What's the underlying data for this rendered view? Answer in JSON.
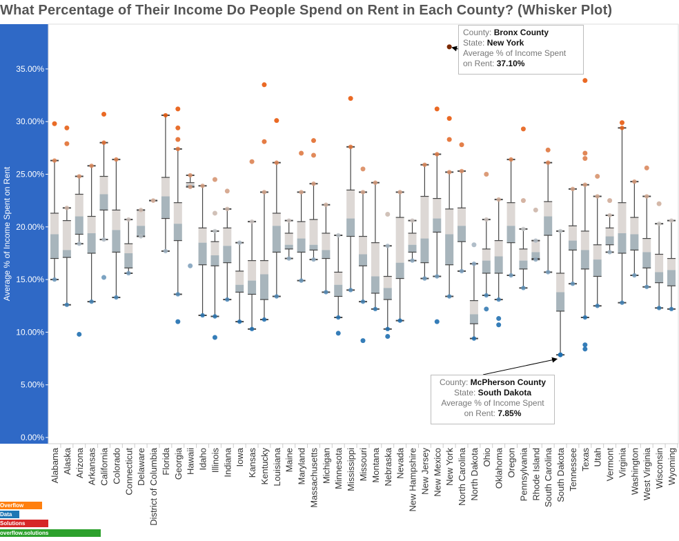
{
  "title": "What Percentage of Their Income Do People Spend on Rent in Each County? (Whisker Plot)",
  "chart_data": {
    "type": "box",
    "title": "What Percentage of Their Income Do People Spend on Rent in Each County? (Whisker Plot)",
    "ylabel": "Average % of Income Spent on Rent",
    "xlabel": "",
    "ylim": [
      0,
      37.5
    ],
    "yticks": [
      "0.00%",
      "5.00%",
      "10.00%",
      "15.00%",
      "20.00%",
      "25.00%",
      "30.00%",
      "35.00%"
    ],
    "grid": false,
    "color_scale": {
      "high": "#e8590c",
      "mid": "#c8c8c8",
      "low": "#1f6fb0",
      "midpoint": 20
    },
    "fields": [
      "whisker_low",
      "q1",
      "median",
      "q3",
      "whisker_high"
    ],
    "states": [
      {
        "name": "Alabama",
        "stats": [
          15.0,
          17.0,
          19.3,
          21.3,
          26.3
        ],
        "outliers": [
          29.8
        ]
      },
      {
        "name": "Alaska",
        "stats": [
          12.6,
          17.1,
          17.8,
          20.6,
          21.8
        ],
        "outliers": [
          29.4,
          27.9
        ]
      },
      {
        "name": "Arizona",
        "stats": [
          18.4,
          19.3,
          21.0,
          23.1,
          24.8
        ],
        "outliers": [
          9.8
        ]
      },
      {
        "name": "Arkansas",
        "stats": [
          12.9,
          17.5,
          19.4,
          21.0,
          25.8
        ],
        "outliers": []
      },
      {
        "name": "California",
        "stats": [
          18.8,
          21.6,
          23.1,
          24.8,
          28.0
        ],
        "outliers": [
          30.7,
          15.2
        ]
      },
      {
        "name": "Colorado",
        "stats": [
          13.3,
          17.6,
          19.7,
          21.6,
          26.4
        ],
        "outliers": []
      },
      {
        "name": "Connecticut",
        "stats": [
          15.6,
          16.1,
          17.5,
          18.4,
          20.7
        ],
        "outliers": []
      },
      {
        "name": "Delaware",
        "stats": [
          19.1,
          19.1,
          20.1,
          21.6,
          21.6
        ],
        "outliers": []
      },
      {
        "name": "District of Columbia",
        "stats": [
          22.5,
          22.5,
          22.5,
          22.5,
          22.5
        ],
        "outliers": []
      },
      {
        "name": "Florida",
        "stats": [
          17.7,
          20.8,
          22.9,
          24.7,
          30.6
        ],
        "outliers": []
      },
      {
        "name": "Georgia",
        "stats": [
          13.6,
          18.7,
          20.3,
          22.3,
          27.4
        ],
        "outliers": [
          31.2,
          29.4,
          28.3,
          11.0
        ]
      },
      {
        "name": "Hawaii",
        "stats": [
          23.8,
          23.8,
          24.0,
          24.2,
          24.9
        ],
        "outliers": [
          16.3
        ]
      },
      {
        "name": "Idaho",
        "stats": [
          11.6,
          16.4,
          18.5,
          19.9,
          23.9
        ],
        "outliers": []
      },
      {
        "name": "Illinois",
        "stats": [
          11.5,
          16.3,
          17.3,
          18.6,
          19.6
        ],
        "outliers": [
          24.5,
          21.3,
          9.5
        ]
      },
      {
        "name": "Indiana",
        "stats": [
          13.1,
          16.6,
          18.2,
          19.9,
          21.7
        ],
        "outliers": [
          23.4
        ]
      },
      {
        "name": "Iowa",
        "stats": [
          11.0,
          13.8,
          14.5,
          15.8,
          18.5
        ],
        "outliers": []
      },
      {
        "name": "Kansas",
        "stats": [
          10.3,
          13.6,
          14.9,
          16.8,
          20.5
        ],
        "outliers": [
          26.2
        ]
      },
      {
        "name": "Kentucky",
        "stats": [
          11.2,
          13.1,
          15.5,
          16.8,
          23.3
        ],
        "outliers": [
          33.5,
          28.1
        ]
      },
      {
        "name": "Louisiana",
        "stats": [
          13.4,
          17.6,
          20.1,
          21.3,
          26.1
        ],
        "outliers": [
          30.1
        ]
      },
      {
        "name": "Maine",
        "stats": [
          17.0,
          17.9,
          18.3,
          19.4,
          20.6
        ],
        "outliers": []
      },
      {
        "name": "Maryland",
        "stats": [
          14.9,
          17.6,
          18.9,
          20.5,
          23.3
        ],
        "outliers": [
          27.0
        ]
      },
      {
        "name": "Massachusetts",
        "stats": [
          16.9,
          17.8,
          18.3,
          20.7,
          24.1
        ],
        "outliers": [
          26.8,
          28.2
        ]
      },
      {
        "name": "Michigan",
        "stats": [
          13.8,
          17.0,
          17.8,
          19.4,
          22.1
        ],
        "outliers": []
      },
      {
        "name": "Minnesota",
        "stats": [
          11.4,
          13.4,
          14.5,
          15.7,
          19.2
        ],
        "outliers": [
          9.9
        ]
      },
      {
        "name": "Mississippi",
        "stats": [
          14.0,
          19.1,
          20.8,
          23.5,
          27.6
        ],
        "outliers": [
          32.2
        ]
      },
      {
        "name": "Missouri",
        "stats": [
          12.9,
          16.3,
          17.4,
          19.1,
          23.3
        ],
        "outliers": [
          25.5,
          9.2
        ]
      },
      {
        "name": "Montana",
        "stats": [
          12.2,
          13.7,
          15.3,
          18.5,
          24.2
        ],
        "outliers": []
      },
      {
        "name": "Nebraska",
        "stats": [
          10.3,
          13.1,
          14.2,
          15.3,
          18.2
        ],
        "outliers": [
          21.2,
          9.6
        ]
      },
      {
        "name": "Nevada",
        "stats": [
          11.1,
          15.1,
          16.6,
          20.9,
          23.3
        ],
        "outliers": []
      },
      {
        "name": "New Hampshire",
        "stats": [
          16.8,
          17.6,
          18.3,
          19.4,
          20.6
        ],
        "outliers": []
      },
      {
        "name": "New Jersey",
        "stats": [
          15.1,
          16.6,
          18.9,
          22.9,
          25.9
        ],
        "outliers": []
      },
      {
        "name": "New Mexico",
        "stats": [
          15.3,
          19.5,
          20.8,
          22.7,
          26.9
        ],
        "outliers": [
          31.2,
          11.0
        ]
      },
      {
        "name": "New York",
        "stats": [
          13.4,
          16.4,
          19.3,
          21.7,
          25.2
        ],
        "outliers": [
          37.1,
          30.3,
          28.3
        ]
      },
      {
        "name": "North Carolina",
        "stats": [
          15.8,
          18.6,
          20.1,
          21.8,
          25.3
        ],
        "outliers": [
          27.8
        ]
      },
      {
        "name": "North Dakota",
        "stats": [
          9.4,
          10.8,
          11.7,
          13.0,
          16.5
        ],
        "outliers": [
          18.3
        ]
      },
      {
        "name": "Ohio",
        "stats": [
          13.5,
          15.6,
          16.8,
          17.9,
          20.7
        ],
        "outliers": [
          25.0,
          12.2
        ]
      },
      {
        "name": "Oklahoma",
        "stats": [
          13.1,
          15.6,
          17.2,
          18.7,
          22.6
        ],
        "outliers": [
          11.3,
          10.7
        ]
      },
      {
        "name": "Oregon",
        "stats": [
          15.4,
          18.5,
          20.1,
          22.3,
          26.4
        ],
        "outliers": []
      },
      {
        "name": "Pennsylvania",
        "stats": [
          14.2,
          16.0,
          16.8,
          17.9,
          19.8
        ],
        "outliers": [
          29.3,
          22.5
        ]
      },
      {
        "name": "Rhode Island",
        "stats": [
          16.9,
          17.0,
          17.6,
          18.7,
          18.7
        ],
        "outliers": [
          21.6
        ]
      },
      {
        "name": "South Carolina",
        "stats": [
          15.7,
          19.2,
          21.0,
          22.4,
          26.1
        ],
        "outliers": [
          27.3
        ]
      },
      {
        "name": "South Dakota",
        "stats": [
          7.85,
          12.0,
          13.8,
          15.6,
          19.6
        ],
        "outliers": []
      },
      {
        "name": "Tennessee",
        "stats": [
          14.6,
          17.8,
          18.7,
          20.1,
          23.6
        ],
        "outliers": []
      },
      {
        "name": "Texas",
        "stats": [
          11.4,
          16.0,
          17.8,
          19.6,
          24.0
        ],
        "outliers": [
          33.9,
          27.0,
          26.5,
          8.8,
          8.4
        ]
      },
      {
        "name": "Utah",
        "stats": [
          12.5,
          15.3,
          16.9,
          18.3,
          22.9
        ],
        "outliers": [
          24.8
        ]
      },
      {
        "name": "Vermont",
        "stats": [
          17.6,
          18.3,
          19.1,
          19.9,
          21.1
        ],
        "outliers": [
          22.5
        ]
      },
      {
        "name": "Virginia",
        "stats": [
          12.8,
          17.5,
          19.4,
          22.3,
          29.4
        ],
        "outliers": [
          29.9
        ]
      },
      {
        "name": "Washington",
        "stats": [
          15.4,
          17.8,
          19.3,
          20.9,
          24.3
        ],
        "outliers": []
      },
      {
        "name": "West Virginia",
        "stats": [
          14.3,
          16.1,
          17.6,
          18.9,
          22.9
        ],
        "outliers": [
          25.6
        ]
      },
      {
        "name": "Wisconsin",
        "stats": [
          12.3,
          14.7,
          15.7,
          17.4,
          20.3
        ],
        "outliers": [
          22.2
        ]
      },
      {
        "name": "Wyoming",
        "stats": [
          12.2,
          14.4,
          15.9,
          17.0,
          20.6
        ],
        "outliers": []
      }
    ],
    "annotations": [
      {
        "state": "New York",
        "county_label": "County:",
        "county": "Bronx County",
        "state_label": "State:",
        "state_value": "New York",
        "measure_label": "Average % of Income Spent",
        "measure_label2": "on Rent:",
        "value_text": "37.10%",
        "value": 37.1
      },
      {
        "state": "South Dakota",
        "county_label": "County:",
        "county": "McPherson County",
        "state_label": "State:",
        "state_value": "South Dakota",
        "measure_label": "Average % of Income Spent",
        "measure_label2": "on Rent:",
        "value_text": "7.85%",
        "value": 7.85
      }
    ]
  },
  "legend_bars": [
    {
      "label": "Overflow",
      "color": "#ff7f0e",
      "fraction": 0.42
    },
    {
      "label": "Data",
      "color": "#1f77b4",
      "fraction": 0.19
    },
    {
      "label": "Solutions",
      "color": "#d62728",
      "fraction": 0.48
    },
    {
      "label": "overflow.solutions",
      "color": "#2ca02c",
      "fraction": 1.0
    }
  ],
  "axis_panel_color": "#2f69c6"
}
